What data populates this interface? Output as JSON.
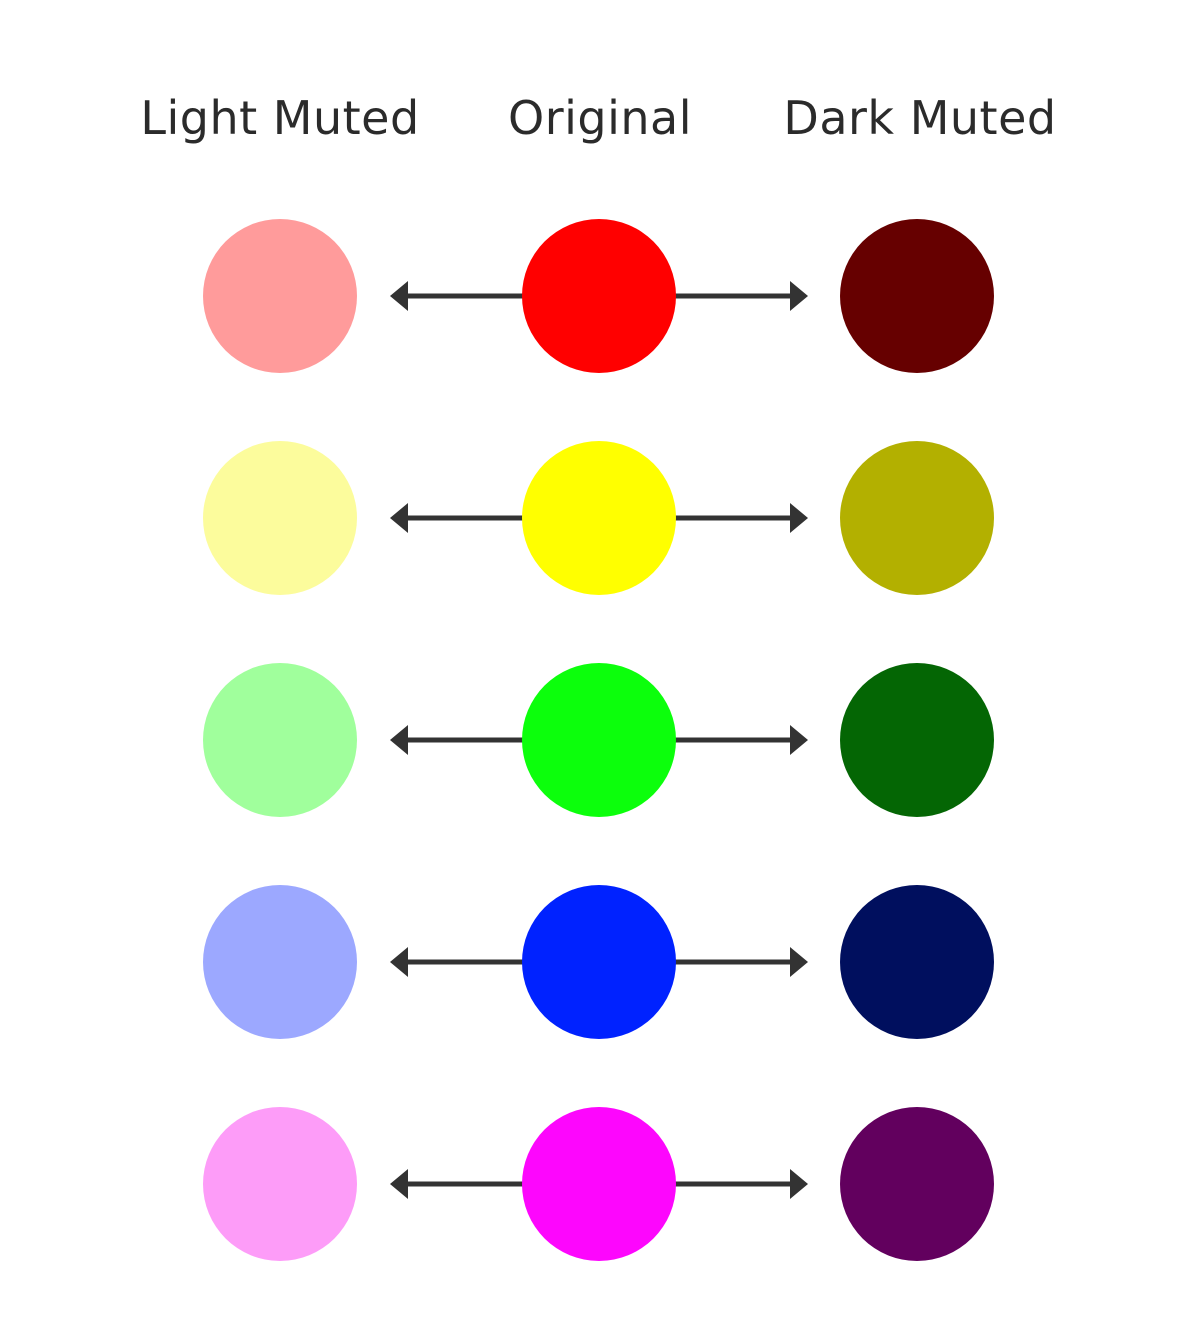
{
  "headers": {
    "light": "Light Muted",
    "original": "Original",
    "dark": "Dark Muted"
  },
  "arrow_color": "#333333",
  "rows": [
    {
      "hue": "red",
      "light": "#ff9b9b",
      "original": "#ff0000",
      "dark": "#660000"
    },
    {
      "hue": "yellow",
      "light": "#fcfc9c",
      "original": "#ffff00",
      "dark": "#b3b000"
    },
    {
      "hue": "green",
      "light": "#a0ff9c",
      "original": "#0cff0c",
      "dark": "#046604"
    },
    {
      "hue": "blue",
      "light": "#9ca8ff",
      "original": "#0022ff",
      "dark": "#000f5e"
    },
    {
      "hue": "magenta",
      "light": "#fd9cf8",
      "original": "#fd06fd",
      "dark": "#62005e"
    }
  ]
}
